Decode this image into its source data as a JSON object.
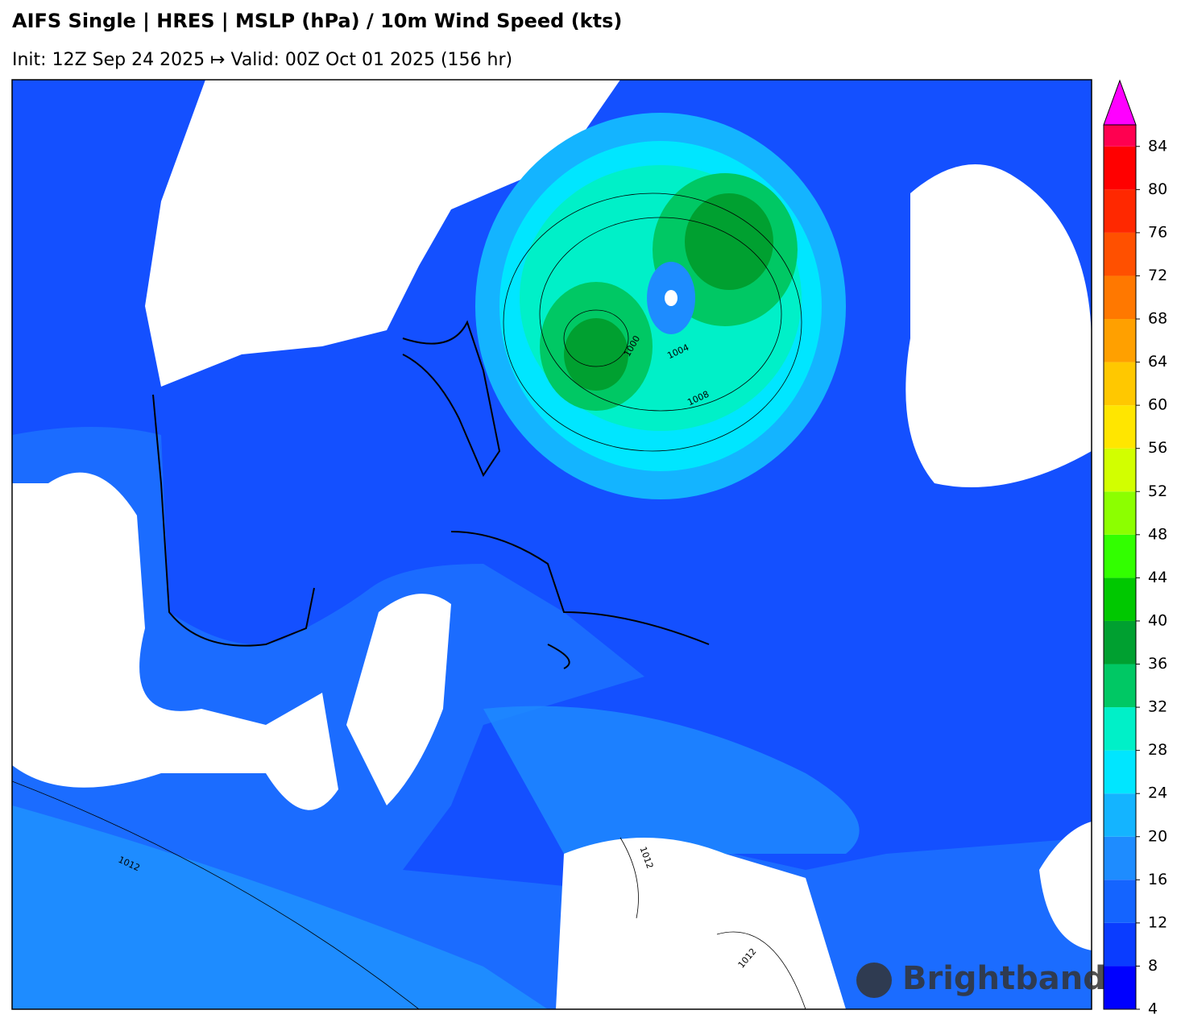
{
  "header": {
    "title": "AIFS Single | HRES | MSLP (hPa) / 10m Wind Speed (kts)",
    "subtitle": "Init: 12Z Sep 24 2025 ↦ Valid: 00Z Oct 01 2025 (156 hr)"
  },
  "colorbar": {
    "lim": [
      4,
      86
    ],
    "ticks": [
      4,
      8,
      12,
      16,
      20,
      24,
      28,
      32,
      36,
      40,
      44,
      48,
      52,
      56,
      60,
      64,
      68,
      72,
      76,
      80,
      84
    ],
    "colors": [
      "#0000ff",
      "#0a3cff",
      "#1464ff",
      "#1e8cff",
      "#14b4ff",
      "#00e6ff",
      "#00f0c8",
      "#00c864",
      "#00a030",
      "#00c800",
      "#32ff00",
      "#8cff00",
      "#d2ff00",
      "#ffe600",
      "#ffc800",
      "#ffa000",
      "#ff7800",
      "#ff5000",
      "#ff2800",
      "#ff0000",
      "#ff0050"
    ],
    "extend_color": "#ff00ff"
  },
  "contours": [
    {
      "label": "1000"
    },
    {
      "label": "1004"
    },
    {
      "label": "1008"
    },
    {
      "label": "1012"
    },
    {
      "label": "1012"
    },
    {
      "label": "1012"
    }
  ],
  "watermark": "Brightband"
}
